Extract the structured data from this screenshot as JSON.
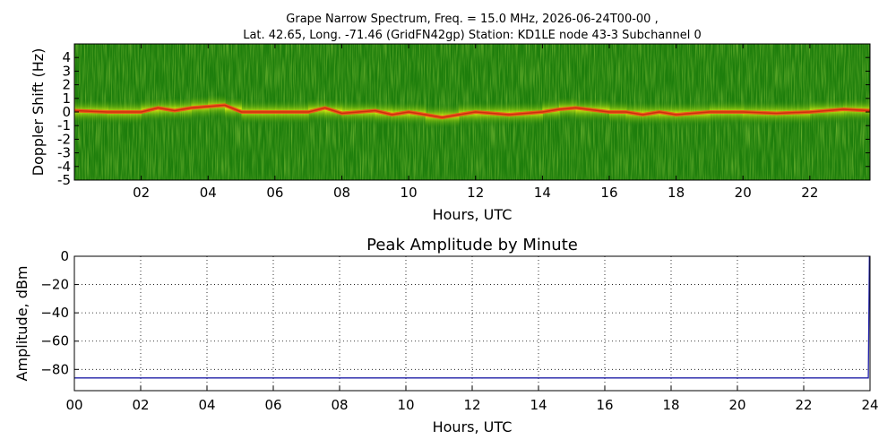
{
  "figure": {
    "title_line1": "Grape Narrow Spectrum, Freq. = 15.0 MHz, 2026-06-24T00-00 ,",
    "title_line2": "Lat.  42.65, Long. -71.46 (GridFN42gp) Station: KD1LE node 43-3 Subchannel 0"
  },
  "chart_data": [
    {
      "type": "heatmap",
      "title": "",
      "xlabel": "Hours, UTC",
      "ylabel": "Doppler Shift (Hz)",
      "xlim": [
        0,
        23.8
      ],
      "ylim": [
        -5,
        5
      ],
      "x_ticks": [
        2,
        4,
        6,
        8,
        10,
        12,
        14,
        16,
        18,
        20,
        22
      ],
      "x_tick_labels": [
        "02",
        "04",
        "06",
        "08",
        "10",
        "12",
        "14",
        "16",
        "18",
        "20",
        "22"
      ],
      "y_ticks": [
        4,
        3,
        2,
        1,
        0,
        -1,
        -2,
        -3,
        -4,
        -5
      ],
      "y_tick_labels": [
        "4",
        "3",
        "2",
        "1",
        "0",
        "-1",
        "-2",
        "-3",
        "-4",
        "-5"
      ],
      "colors": {
        "background": "#1e7e0c",
        "mid": "#cfe40f",
        "peak": "#f0521a"
      },
      "peak_track": {
        "x": [
          0,
          1,
          2,
          2.5,
          3,
          3.5,
          4,
          4.5,
          5,
          6,
          7,
          7.5,
          8,
          9,
          9.5,
          10,
          10.5,
          11,
          11.5,
          12,
          13,
          14,
          14.5,
          15,
          16,
          16.5,
          17,
          17.5,
          18,
          19,
          20,
          21,
          22,
          23,
          23.8
        ],
        "y": [
          0.1,
          0,
          0,
          0.3,
          0.1,
          0.3,
          0.4,
          0.5,
          0,
          0,
          0,
          0.3,
          -0.1,
          0.1,
          -0.2,
          0,
          -0.2,
          -0.4,
          -0.2,
          0,
          -0.2,
          0,
          0.2,
          0.3,
          0,
          0,
          -0.2,
          0,
          -0.2,
          0,
          0,
          -0.1,
          0,
          0.2,
          0.1
        ]
      }
    },
    {
      "type": "line",
      "title": "Peak Amplitude by Minute",
      "xlabel": "Hours, UTC",
      "ylabel": "Amplitude, dBm",
      "xlim": [
        0,
        24
      ],
      "ylim": [
        -95,
        0
      ],
      "grid": true,
      "x_ticks": [
        0,
        2,
        4,
        6,
        8,
        10,
        12,
        14,
        16,
        18,
        20,
        22,
        24
      ],
      "x_tick_labels": [
        "00",
        "02",
        "04",
        "06",
        "08",
        "10",
        "12",
        "14",
        "16",
        "18",
        "20",
        "22",
        "24"
      ],
      "y_ticks": [
        0,
        -20,
        -40,
        -60,
        -80
      ],
      "y_tick_labels": [
        "0",
        "−20",
        "−40",
        "−60",
        "−80"
      ],
      "line_color": "#1f1fa8",
      "series": [
        {
          "x": [
            0,
            2,
            4,
            6,
            8,
            10,
            12,
            14,
            16,
            18,
            20,
            22,
            23.95,
            23.98,
            24
          ],
          "y": [
            -86,
            -86,
            -86,
            -86,
            -86,
            -86,
            -86,
            -86,
            -86,
            -86,
            -86,
            -86,
            -86,
            0,
            0
          ]
        }
      ]
    }
  ]
}
